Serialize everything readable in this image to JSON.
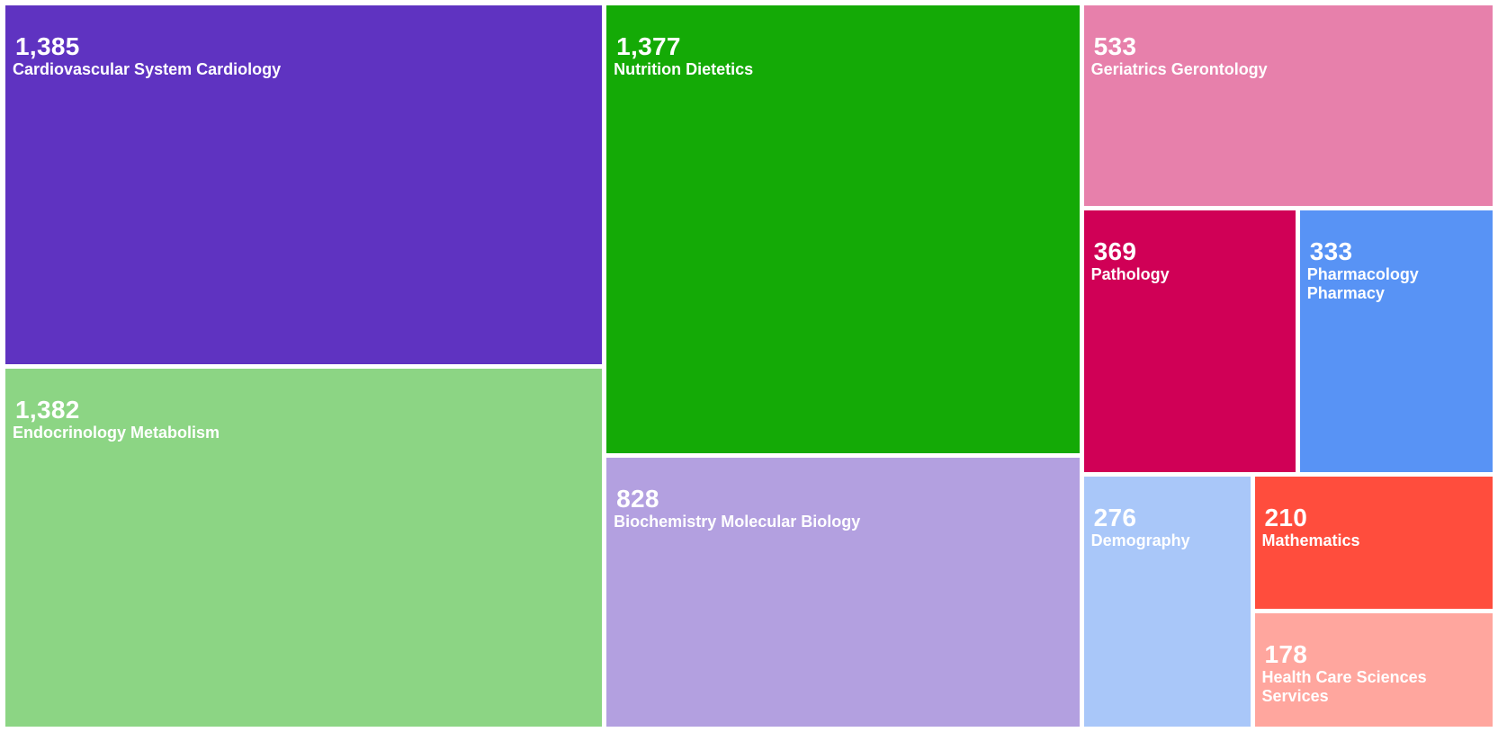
{
  "chart_data": {
    "type": "treemap",
    "items": [
      {
        "label": "Cardiovascular System Cardiology",
        "value": 1385,
        "display_value": "1,385",
        "color": "#5f33c1"
      },
      {
        "label": "Endocrinology Metabolism",
        "value": 1382,
        "display_value": "1,382",
        "color": "#8cd584"
      },
      {
        "label": "Nutrition Dietetics",
        "value": 1377,
        "display_value": "1,377",
        "color": "#14aa06"
      },
      {
        "label": "Biochemistry Molecular Biology",
        "value": 828,
        "display_value": "828",
        "color": "#b3a0e0"
      },
      {
        "label": "Geriatrics Gerontology",
        "value": 533,
        "display_value": "533",
        "color": "#e780ab"
      },
      {
        "label": "Pathology",
        "value": 369,
        "display_value": "369",
        "color": "#d00056"
      },
      {
        "label": "Pharmacology Pharmacy",
        "value": 333,
        "display_value": "333",
        "color": "#5893f5"
      },
      {
        "label": "Demography",
        "value": 276,
        "display_value": "276",
        "color": "#a9c7f9"
      },
      {
        "label": "Mathematics",
        "value": 210,
        "display_value": "210",
        "color": "#ff4d3d"
      },
      {
        "label": "Health Care Sciences Services",
        "value": 178,
        "display_value": "178",
        "color": "#ffa69e"
      }
    ]
  }
}
